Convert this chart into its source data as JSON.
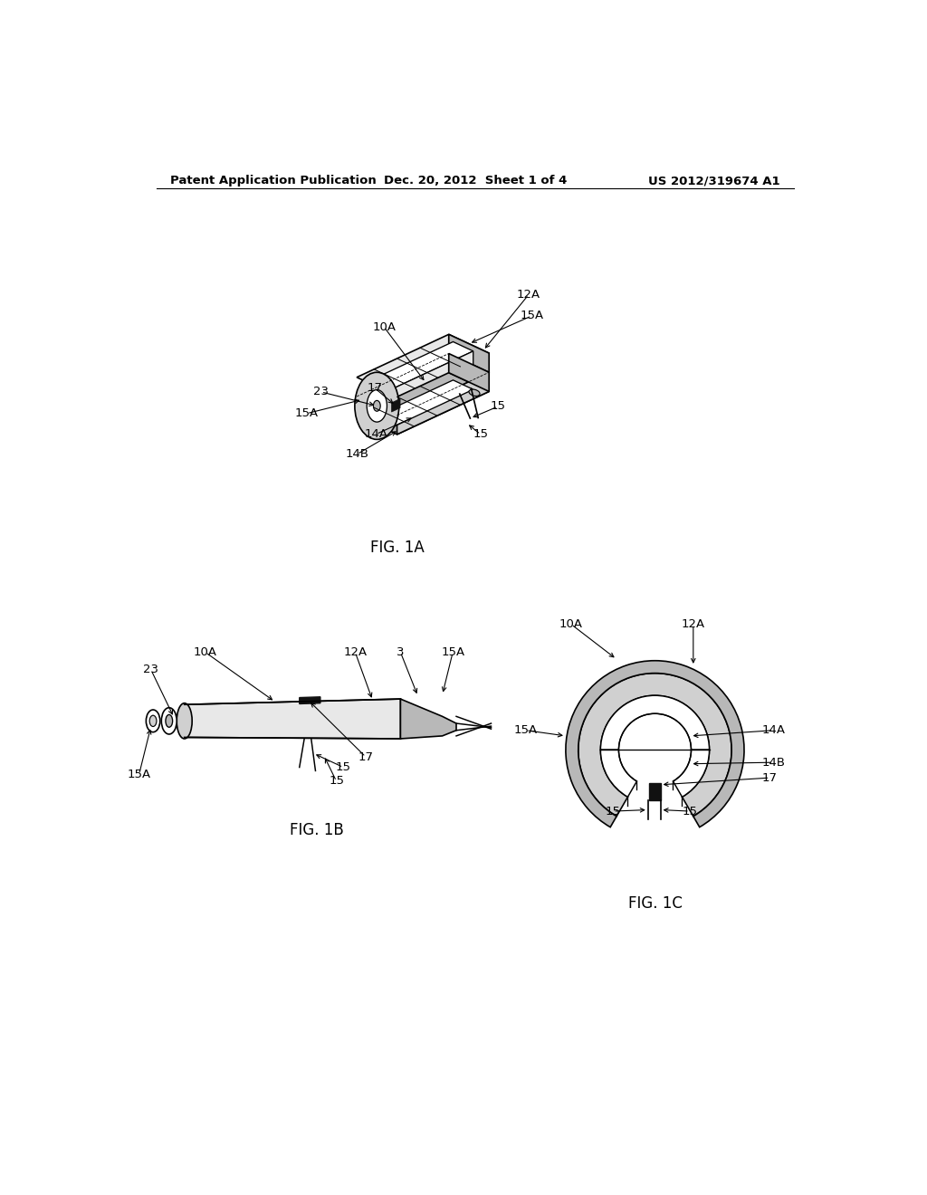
{
  "background_color": "#ffffff",
  "line_color": "#000000",
  "header_left": "Patent Application Publication",
  "header_center": "Dec. 20, 2012  Sheet 1 of 4",
  "header_right": "US 2012/319674 A1",
  "fig1a_label": "FIG. 1A",
  "fig1b_label": "FIG. 1B",
  "fig1c_label": "FIG. 1C",
  "gray1": "#d0d0d0",
  "gray2": "#b8b8b8",
  "gray3": "#e8e8e8",
  "black": "#111111"
}
